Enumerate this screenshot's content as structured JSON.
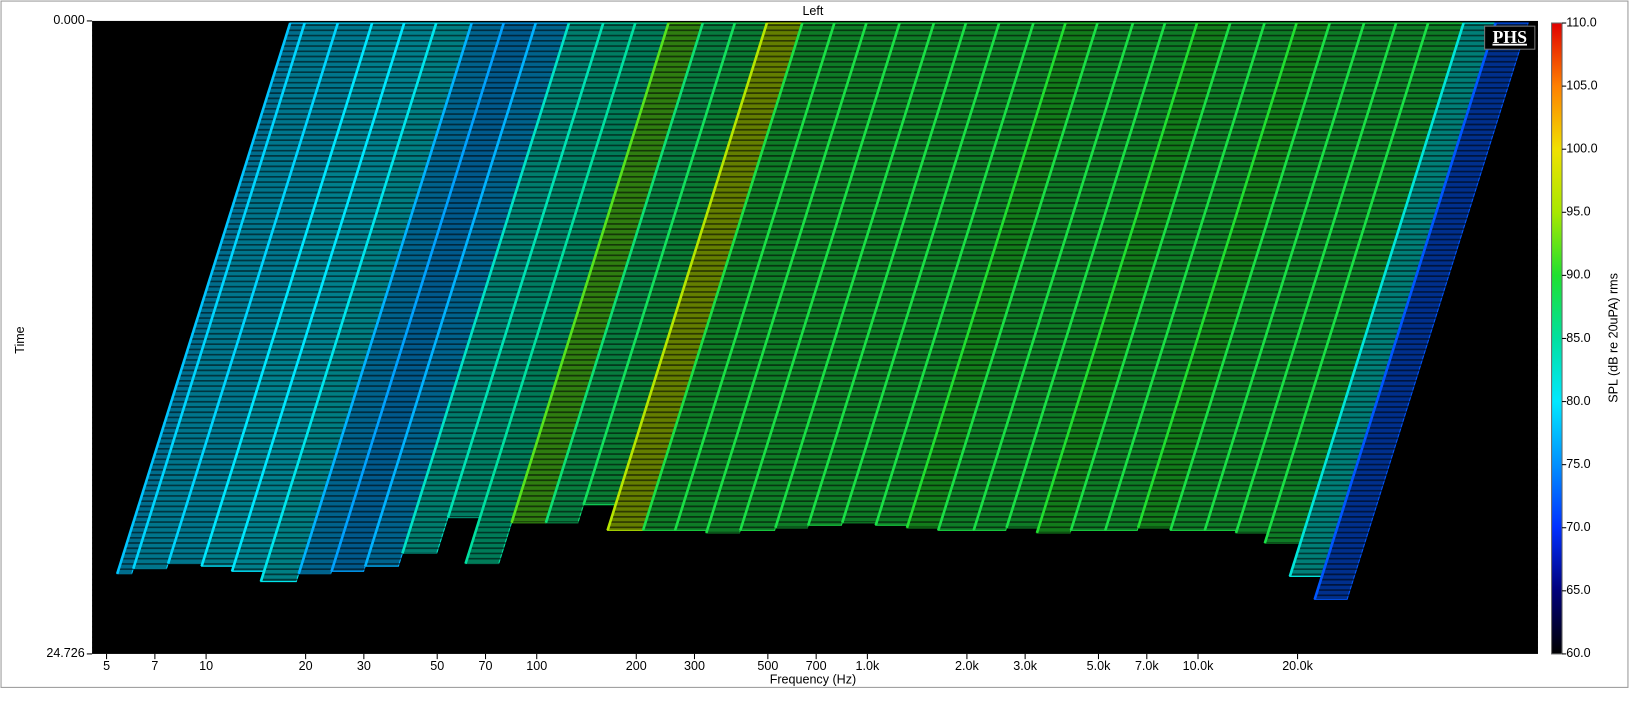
{
  "chart_data": {
    "type": "waterfall",
    "title": "Left",
    "xlabel": "Frequency (Hz)",
    "ylabel": "Time",
    "colorbar_label": "SPL (dB re 20uPA) rms",
    "logo": "PHS",
    "xscale": "log",
    "xlim": [
      4.52,
      106700
    ],
    "xticks": [
      5,
      7,
      10,
      20,
      30,
      50,
      70,
      100,
      200,
      300,
      500,
      700,
      {
        "value": 1000,
        "label": "1.0k"
      },
      {
        "value": 2000,
        "label": "2.0k"
      },
      {
        "value": 3000,
        "label": "3.0k"
      },
      {
        "value": 5000,
        "label": "5.0k"
      },
      {
        "value": 7000,
        "label": "7.0k"
      },
      {
        "value": 10000,
        "label": "10.0k"
      },
      {
        "value": 20000,
        "label": "20.0k"
      }
    ],
    "ylim": [
      0,
      24.726
    ],
    "yticks": [
      {
        "value": 0,
        "label": "0.000"
      },
      {
        "value": 24.726,
        "label": "24.726"
      }
    ],
    "clim": [
      60,
      110
    ],
    "cticks": [
      {
        "value": 60,
        "label": "60.0"
      },
      {
        "value": 65,
        "label": "65.0"
      },
      {
        "value": 70,
        "label": "70.0"
      },
      {
        "value": 75,
        "label": "75.0"
      },
      {
        "value": 80,
        "label": "80.0"
      },
      {
        "value": 85,
        "label": "85.0"
      },
      {
        "value": 90,
        "label": "90.0"
      },
      {
        "value": 95,
        "label": "95.0"
      },
      {
        "value": 100,
        "label": "100.0"
      },
      {
        "value": 105,
        "label": "105.0"
      },
      {
        "value": 110,
        "label": "110.0"
      }
    ],
    "colormap": [
      "#000000",
      "#00007a",
      "#0030ff",
      "#0090ff",
      "#00e8ff",
      "#00e0a0",
      "#20e030",
      "#a8e800",
      "#f0e000",
      "#ff8000",
      "#e00000"
    ],
    "frequencies": [
      4.52,
      5,
      6.3,
      8,
      10,
      12.5,
      16,
      20,
      25,
      31.5,
      40,
      50,
      63,
      80,
      100,
      125,
      160,
      200,
      250,
      315,
      400,
      500,
      630,
      800,
      1000,
      1250,
      1600,
      2000,
      2500,
      3150,
      4000,
      5000,
      6300,
      8000,
      10000,
      12500,
      16000,
      20000
    ],
    "values": [
      78,
      79,
      79,
      80,
      80,
      81,
      77,
      76,
      77,
      83,
      84,
      85,
      92,
      87,
      88,
      96,
      89,
      89,
      89,
      89,
      89,
      89,
      89,
      89,
      90,
      89,
      89,
      89,
      90,
      89,
      89,
      90,
      89,
      89,
      89,
      89,
      82,
      72
    ],
    "end_times": [
      21.6,
      21.4,
      21.2,
      21.3,
      21.5,
      21.9,
      21.6,
      21.5,
      21.3,
      20.8,
      19.4,
      21.2,
      19.6,
      19.6,
      18.9,
      19.9,
      19.9,
      19.9,
      20.0,
      19.9,
      19.8,
      19.7,
      19.6,
      19.7,
      19.8,
      19.9,
      19.9,
      19.8,
      20.0,
      19.9,
      19.9,
      19.8,
      19.9,
      19.9,
      20.0,
      20.4,
      21.7,
      22.6
    ]
  }
}
